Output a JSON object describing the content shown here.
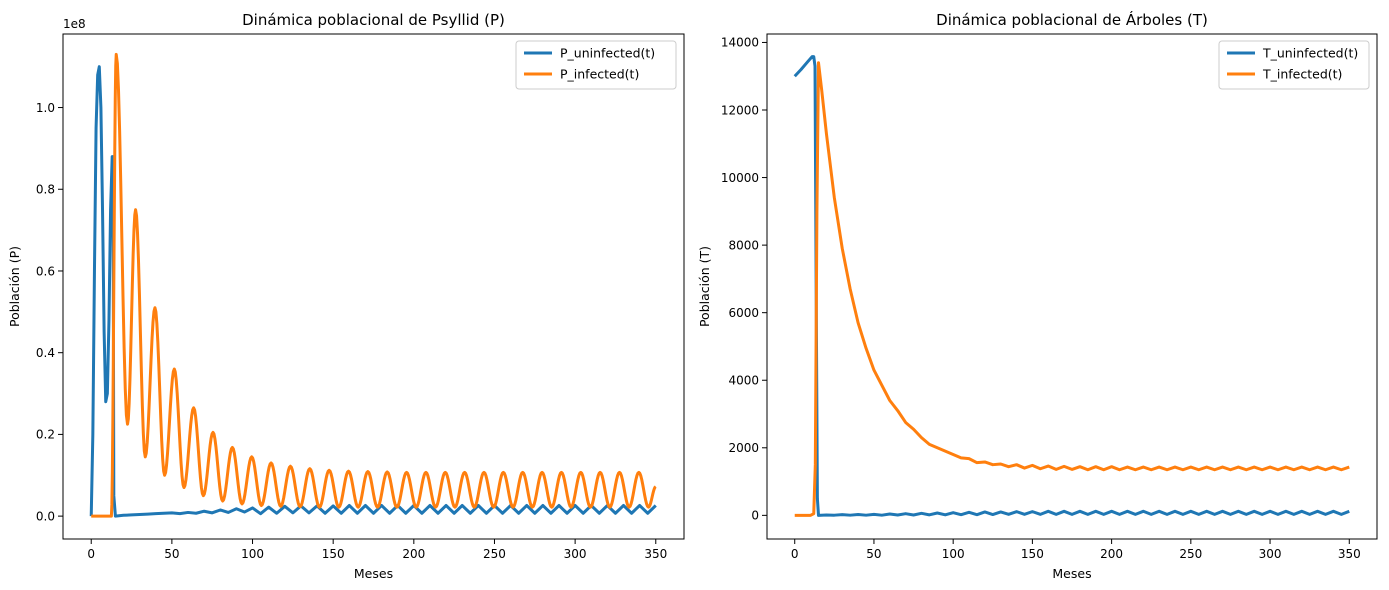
{
  "chart_data": [
    {
      "type": "line",
      "title": "Dinámica poblacional de Psyllid (P)",
      "xlabel": "Meses",
      "ylabel": "Población (P)",
      "y_offset_text": "1e8",
      "xlim": [
        -17.5,
        367.5
      ],
      "ylim": [
        -5600000,
        118000000
      ],
      "xticks": [
        0,
        50,
        100,
        150,
        200,
        250,
        300,
        350
      ],
      "yticks": [
        0,
        20000000,
        40000000,
        60000000,
        80000000,
        100000000
      ],
      "ytick_labels": [
        "0.0",
        "0.2",
        "0.4",
        "0.6",
        "0.8",
        "1.0"
      ],
      "legend_position": "upper right",
      "grid": false,
      "series": [
        {
          "name": "P_uninfected(t)",
          "color": "#1f77b4",
          "x": [
            0,
            1,
            2,
            3,
            4,
            5,
            6,
            7,
            8,
            9,
            10,
            11,
            12,
            13,
            13.5,
            14,
            15,
            20,
            25,
            30,
            35,
            40,
            45,
            50,
            55,
            60,
            65,
            70,
            75,
            80,
            85,
            90,
            95,
            100,
            105,
            110,
            115,
            120,
            125,
            130,
            135,
            140,
            145,
            150,
            155,
            160,
            165,
            170,
            175,
            180,
            185,
            190,
            195,
            200,
            205,
            210,
            215,
            220,
            225,
            230,
            235,
            240,
            245,
            250,
            255,
            260,
            265,
            270,
            275,
            280,
            285,
            290,
            295,
            300,
            305,
            310,
            315,
            320,
            325,
            330,
            335,
            340,
            345,
            350
          ],
          "values": [
            0,
            20000000,
            60000000,
            95000000,
            108000000,
            110000000,
            100000000,
            75000000,
            45000000,
            28000000,
            30000000,
            48000000,
            75000000,
            88000000,
            88000000,
            5000000,
            0,
            200000,
            300000,
            400000,
            500000,
            600000,
            700000,
            800000,
            600000,
            900000,
            700000,
            1200000,
            800000,
            1500000,
            900000,
            1800000,
            1000000,
            2000000,
            600000,
            2200000,
            700000,
            2400000,
            800000,
            2500000,
            800000,
            2500000,
            700000,
            2500000,
            700000,
            2600000,
            700000,
            2600000,
            700000,
            2600000,
            700000,
            2600000,
            700000,
            2600000,
            700000,
            2600000,
            700000,
            2600000,
            700000,
            2600000,
            700000,
            2600000,
            700000,
            2600000,
            700000,
            2600000,
            700000,
            2600000,
            700000,
            2600000,
            700000,
            2600000,
            700000,
            2600000,
            700000,
            2600000,
            700000,
            2600000,
            700000,
            2600000,
            700000,
            2600000,
            700000,
            2600000
          ]
        },
        {
          "name": "P_infected(t)",
          "color": "#ff7f0e",
          "peaks": [
            [
              15.5,
              113000000
            ],
            [
              27.5,
              75000000
            ],
            [
              39.5,
              51000000
            ],
            [
              51.5,
              36000000
            ],
            [
              63.5,
              26500000
            ],
            [
              75.5,
              20500000
            ],
            [
              87.5,
              16800000
            ],
            [
              99.5,
              14500000
            ],
            [
              111.5,
              13000000
            ],
            [
              123.5,
              12200000
            ],
            [
              135.5,
              11600000
            ],
            [
              147.5,
              11200000
            ],
            [
              159.5,
              11000000
            ],
            [
              171.5,
              10900000
            ],
            [
              183.5,
              10800000
            ],
            [
              195.5,
              10700000
            ],
            [
              207.5,
              10700000
            ],
            [
              219.5,
              10700000
            ],
            [
              231.5,
              10700000
            ],
            [
              243.5,
              10700000
            ],
            [
              255.5,
              10700000
            ],
            [
              267.5,
              10700000
            ],
            [
              279.5,
              10700000
            ],
            [
              291.5,
              10700000
            ],
            [
              303.5,
              10700000
            ],
            [
              315.5,
              10700000
            ],
            [
              327.5,
              10700000
            ],
            [
              339.5,
              10700000
            ]
          ],
          "troughs": [
            [
              22.5,
              22500000
            ],
            [
              33.5,
              14500000
            ],
            [
              45.5,
              10000000
            ],
            [
              57.5,
              7000000
            ],
            [
              69.5,
              5000000
            ],
            [
              81.5,
              3700000
            ],
            [
              93.5,
              3000000
            ],
            [
              105.5,
              2600000
            ],
            [
              117.5,
              2400000
            ],
            [
              129.5,
              2300000
            ],
            [
              141.5,
              2200000
            ],
            [
              153.5,
              2200000
            ],
            [
              165.5,
              2200000
            ],
            [
              177.5,
              2200000
            ],
            [
              189.5,
              2200000
            ],
            [
              201.5,
              2200000
            ],
            [
              213.5,
              2200000
            ],
            [
              225.5,
              2200000
            ],
            [
              237.5,
              2200000
            ],
            [
              249.5,
              2200000
            ],
            [
              261.5,
              2200000
            ],
            [
              273.5,
              2200000
            ],
            [
              285.5,
              2200000
            ],
            [
              297.5,
              2200000
            ],
            [
              309.5,
              2200000
            ],
            [
              321.5,
              2200000
            ],
            [
              333.5,
              2200000
            ],
            [
              345.5,
              2200000
            ]
          ],
          "pre_outbreak": [
            [
              0,
              0
            ],
            [
              12.5,
              0
            ]
          ],
          "end": [
            350,
            7200000
          ]
        }
      ]
    },
    {
      "type": "line",
      "title": "Dinámica poblacional de Árboles (T)",
      "xlabel": "Meses",
      "ylabel": "Población (T)",
      "xlim": [
        -17.5,
        367.5
      ],
      "ylim": [
        -700,
        14250
      ],
      "xticks": [
        0,
        50,
        100,
        150,
        200,
        250,
        300,
        350
      ],
      "yticks": [
        0,
        2000,
        4000,
        6000,
        8000,
        10000,
        12000,
        14000
      ],
      "legend_position": "upper right",
      "grid": false,
      "series": [
        {
          "name": "T_uninfected(t)",
          "color": "#1f77b4",
          "x": [
            0,
            4,
            8,
            11,
            12,
            12.8,
            13.5,
            14.3,
            15,
            20,
            25,
            30,
            35,
            40,
            45,
            50,
            55,
            60,
            65,
            70,
            75,
            80,
            85,
            90,
            95,
            100,
            105,
            110,
            115,
            120,
            125,
            130,
            135,
            140,
            145,
            150,
            155,
            160,
            165,
            170,
            175,
            180,
            185,
            190,
            195,
            200,
            205,
            210,
            215,
            220,
            225,
            230,
            235,
            240,
            245,
            250,
            255,
            260,
            265,
            270,
            275,
            280,
            285,
            290,
            295,
            300,
            305,
            310,
            315,
            320,
            325,
            330,
            335,
            340,
            345,
            350
          ],
          "values": [
            13000,
            13200,
            13420,
            13580,
            13580,
            13300,
            7000,
            500,
            0,
            10,
            5,
            20,
            5,
            25,
            5,
            30,
            5,
            40,
            10,
            50,
            10,
            60,
            15,
            70,
            15,
            80,
            20,
            90,
            20,
            100,
            25,
            100,
            30,
            110,
            30,
            110,
            30,
            120,
            30,
            120,
            30,
            120,
            30,
            120,
            30,
            120,
            30,
            120,
            30,
            120,
            30,
            120,
            30,
            120,
            30,
            120,
            30,
            120,
            30,
            120,
            30,
            120,
            30,
            120,
            30,
            120,
            30,
            120,
            30,
            120,
            30,
            120,
            30,
            120,
            30,
            120
          ]
        },
        {
          "name": "T_infected(t)",
          "color": "#ff7f0e",
          "x": [
            0,
            10,
            12,
            13,
            14,
            15,
            17,
            20,
            25,
            30,
            35,
            40,
            45,
            50,
            55,
            60,
            65,
            70,
            75,
            80,
            85,
            90,
            95,
            100,
            105,
            110,
            115,
            120,
            125,
            130,
            135,
            140,
            145,
            150,
            155,
            160,
            165,
            170,
            175,
            180,
            185,
            190,
            195,
            200,
            205,
            210,
            215,
            220,
            225,
            230,
            235,
            240,
            245,
            250,
            255,
            260,
            265,
            270,
            275,
            280,
            285,
            290,
            295,
            300,
            305,
            310,
            315,
            320,
            325,
            330,
            335,
            340,
            345,
            350
          ],
          "values": [
            0,
            0,
            50,
            1500,
            9000,
            13400,
            12600,
            11300,
            9400,
            7900,
            6700,
            5700,
            4950,
            4300,
            3850,
            3400,
            3100,
            2750,
            2550,
            2300,
            2100,
            2000,
            1900,
            1800,
            1700,
            1680,
            1560,
            1580,
            1500,
            1520,
            1440,
            1500,
            1400,
            1480,
            1380,
            1460,
            1360,
            1450,
            1360,
            1440,
            1350,
            1440,
            1350,
            1440,
            1350,
            1430,
            1350,
            1430,
            1350,
            1430,
            1350,
            1430,
            1350,
            1430,
            1350,
            1430,
            1350,
            1430,
            1350,
            1430,
            1350,
            1430,
            1350,
            1430,
            1350,
            1430,
            1350,
            1430,
            1350,
            1430,
            1350,
            1430,
            1350,
            1430
          ]
        }
      ]
    }
  ]
}
